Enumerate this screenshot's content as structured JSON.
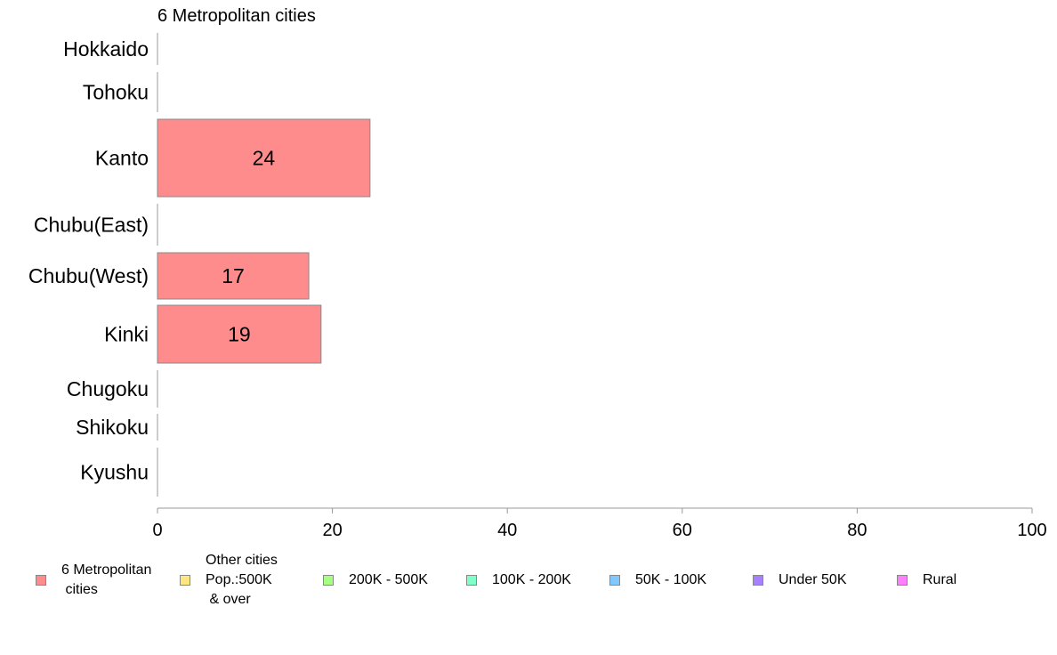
{
  "chart_data": {
    "type": "bar",
    "orientation": "horizontal",
    "title": "6 Metropolitan cities",
    "categories": [
      "Hokkaido",
      "Tohoku",
      "Kanto",
      "Chubu(East)",
      "Chubu(West)",
      "Kinki",
      "Chugoku",
      "Shikoku",
      "Kyushu"
    ],
    "values": [
      0,
      0,
      24.3,
      0,
      17.3,
      18.7,
      0,
      0,
      0
    ],
    "value_labels": [
      "",
      "",
      "24",
      "",
      "17",
      "19",
      "",
      "",
      ""
    ],
    "xlim": [
      0,
      100
    ],
    "xticks": [
      "0",
      "20",
      "40",
      "60",
      "80",
      "100"
    ],
    "bar_color": "#ff8c8c",
    "grid": false,
    "legend": {
      "placement": "bottom",
      "items": [
        {
          "label": "6 Metropolitan\n cities",
          "color": "#ff8c8c"
        },
        {
          "label": "Other cities\nPop.:500K\n & over",
          "color": "#ffe680"
        },
        {
          "label": "200K - 500K",
          "color": "#a6ff80"
        },
        {
          "label": "100K - 200K",
          "color": "#80ffc8"
        },
        {
          "label": "50K - 100K",
          "color": "#80c8ff"
        },
        {
          "label": "Under 50K",
          "color": "#a680ff"
        },
        {
          "label": "Rural",
          "color": "#ff80ff"
        }
      ]
    }
  }
}
